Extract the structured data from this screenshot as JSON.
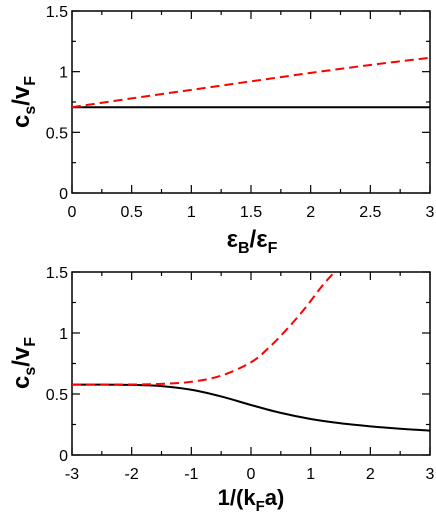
{
  "chart_data": [
    {
      "type": "line",
      "title": "",
      "xlabel": {
        "main": "ε",
        "sub": "B",
        "slash": "/ε",
        "sub2": "F"
      },
      "ylabel": {
        "main": "c",
        "sub": "s",
        "slash": "/v",
        "sub2": "F"
      },
      "xlim": [
        0,
        3
      ],
      "ylim": [
        0,
        1.5
      ],
      "xticks": [
        0,
        0.5,
        1,
        1.5,
        2,
        2.5,
        3
      ],
      "xtick_labels": [
        "0",
        "0.5",
        "1",
        "1.5",
        "2",
        "2.5",
        "3"
      ],
      "yticks": [
        0,
        0.5,
        1,
        1.5
      ],
      "ytick_labels": [
        "0",
        "0.5",
        "1",
        "1.5"
      ],
      "grid": false,
      "series": [
        {
          "color": "#000000",
          "dash": "solid",
          "x": [
            0,
            3
          ],
          "y": [
            0.707,
            0.707
          ]
        },
        {
          "color": "#ff0000",
          "dash": "dashed",
          "x": [
            0,
            0.5,
            1,
            1.5,
            2,
            2.5,
            3
          ],
          "y": [
            0.707,
            0.78,
            0.85,
            0.92,
            0.99,
            1.055,
            1.115
          ]
        }
      ]
    },
    {
      "type": "line",
      "title": "",
      "xlabel": {
        "pre": "1/(k",
        "sub": "F",
        "post": "a)"
      },
      "ylabel": {
        "main": "c",
        "sub": "s",
        "slash": "/v",
        "sub2": "F"
      },
      "xlim": [
        -3,
        3
      ],
      "ylim": [
        0,
        1.5
      ],
      "xticks": [
        -3,
        -2,
        -1,
        0,
        1,
        2,
        3
      ],
      "xtick_labels": [
        "-3",
        "-2",
        "-1",
        "0",
        "1",
        "2",
        "3"
      ],
      "yticks": [
        0,
        0.5,
        1,
        1.5
      ],
      "ytick_labels": [
        "0",
        "0.5",
        "1",
        "1.5"
      ],
      "grid": false,
      "series": [
        {
          "color": "#000000",
          "dash": "solid",
          "x": [
            -3,
            -2,
            -1.5,
            -1,
            -0.5,
            0,
            0.5,
            1,
            1.5,
            2,
            2.5,
            3
          ],
          "y": [
            0.577,
            0.575,
            0.565,
            0.535,
            0.48,
            0.41,
            0.345,
            0.295,
            0.26,
            0.235,
            0.215,
            0.2
          ]
        },
        {
          "color": "#ff0000",
          "dash": "dashed",
          "x": [
            -3,
            -2,
            -1.5,
            -1,
            -0.5,
            0,
            0.3,
            0.6,
            0.9,
            1.2,
            1.4
          ],
          "y": [
            0.577,
            0.578,
            0.583,
            0.6,
            0.65,
            0.76,
            0.88,
            1.03,
            1.2,
            1.39,
            1.5
          ]
        }
      ]
    }
  ]
}
